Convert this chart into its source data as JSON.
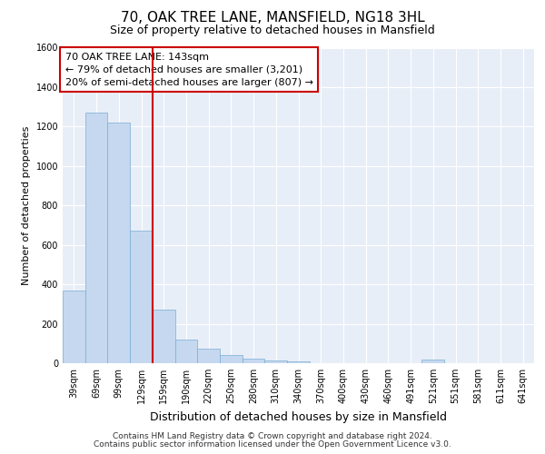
{
  "title_line1": "70, OAK TREE LANE, MANSFIELD, NG18 3HL",
  "title_line2": "Size of property relative to detached houses in Mansfield",
  "xlabel": "Distribution of detached houses by size in Mansfield",
  "ylabel": "Number of detached properties",
  "footer_line1": "Contains HM Land Registry data © Crown copyright and database right 2024.",
  "footer_line2": "Contains public sector information licensed under the Open Government Licence v3.0.",
  "annotation_line1": "70 OAK TREE LANE: 143sqm",
  "annotation_line2": "← 79% of detached houses are smaller (3,201)",
  "annotation_line3": "20% of semi-detached houses are larger (807) →",
  "categories": [
    "39sqm",
    "69sqm",
    "99sqm",
    "129sqm",
    "159sqm",
    "190sqm",
    "220sqm",
    "250sqm",
    "280sqm",
    "310sqm",
    "340sqm",
    "370sqm",
    "400sqm",
    "430sqm",
    "460sqm",
    "491sqm",
    "521sqm",
    "551sqm",
    "581sqm",
    "611sqm",
    "641sqm"
  ],
  "values": [
    370,
    1270,
    1220,
    670,
    270,
    120,
    75,
    40,
    25,
    15,
    10,
    0,
    0,
    0,
    0,
    0,
    20,
    0,
    0,
    0,
    0
  ],
  "bar_color": "#c5d8ef",
  "bar_edge_color": "#7aaed4",
  "red_line_color": "#cc0000",
  "red_line_x": 3.5,
  "ylim": [
    0,
    1600
  ],
  "yticks": [
    0,
    200,
    400,
    600,
    800,
    1000,
    1200,
    1400,
    1600
  ],
  "figure_bg": "#ffffff",
  "plot_bg": "#e8eef7",
  "grid_color": "#ffffff",
  "ann_box_facecolor": "#ffffff",
  "ann_box_edgecolor": "#cc0000",
  "title1_fontsize": 11,
  "title2_fontsize": 9,
  "ylabel_fontsize": 8,
  "xlabel_fontsize": 9,
  "tick_fontsize": 7,
  "footer_fontsize": 6.5
}
